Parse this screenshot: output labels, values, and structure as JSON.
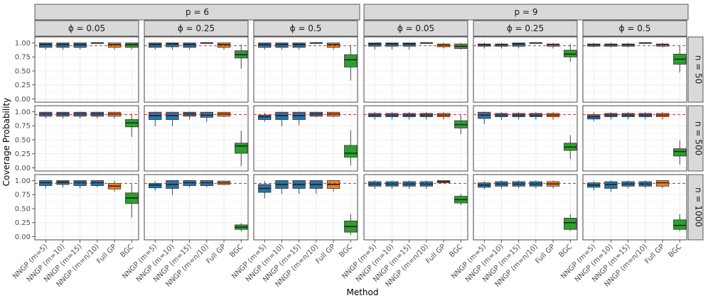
{
  "chart_data": {
    "type": "boxplot",
    "title": "",
    "xlabel": "Method",
    "ylabel": "Coverage Probability",
    "ylim": [
      0.0,
      1.05
    ],
    "yticks": [
      0.0,
      0.25,
      0.5,
      0.75,
      1.0
    ],
    "ytick_labels": [
      "0.00",
      "0.25",
      "0.50",
      "0.75",
      "1.00"
    ],
    "reference_line": 0.95,
    "colors": {
      "nngp": "#1f77b4",
      "full_gp": "#ff7f0e",
      "bgc": "#2ca02c",
      "reference": "#d62728",
      "strip_bg": "#d9d9d9",
      "grid": "#ebebeb"
    },
    "methods": [
      "NNGP (m=5)",
      "NNGP (m=10)",
      "NNGP (m=15)",
      "NNGP (m=n/10)",
      "Full GP",
      "BGC"
    ],
    "method_groups": [
      "nngp",
      "nngp",
      "nngp",
      "nngp",
      "full_gp",
      "bgc"
    ],
    "p_labels": [
      "p = 6",
      "p = 9"
    ],
    "phi_labels": [
      "ϕ = 0.05",
      "ϕ = 0.25",
      "ϕ = 0.5"
    ],
    "n_labels": [
      "n = 50",
      "n = 500",
      "n = 1000"
    ],
    "stats_format": "[whisker_low, q1, median, q3, whisker_high]",
    "panels": [
      {
        "p": "p = 6",
        "phi": "ϕ = 0.05",
        "n": "n = 50",
        "boxes": [
          [
            0.88,
            0.92,
            0.97,
            1.0,
            1.0
          ],
          [
            0.88,
            0.92,
            0.97,
            1.0,
            1.0
          ],
          [
            0.88,
            0.92,
            0.97,
            1.0,
            1.0
          ],
          [
            1.0,
            1.0,
            1.0,
            1.0,
            1.0
          ],
          [
            0.88,
            0.92,
            0.97,
            1.0,
            1.0
          ],
          [
            0.88,
            0.92,
            0.97,
            1.0,
            1.0
          ]
        ]
      },
      {
        "p": "p = 6",
        "phi": "ϕ = 0.25",
        "n": "n = 50",
        "boxes": [
          [
            0.88,
            0.92,
            0.97,
            1.0,
            1.0
          ],
          [
            0.88,
            0.93,
            0.98,
            1.0,
            1.0
          ],
          [
            0.88,
            0.92,
            0.97,
            1.0,
            1.0
          ],
          [
            1.0,
            1.0,
            1.0,
            1.0,
            1.0
          ],
          [
            0.88,
            0.92,
            0.97,
            1.0,
            1.0
          ],
          [
            0.54,
            0.73,
            0.79,
            0.86,
            0.97
          ]
        ]
      },
      {
        "p": "p = 6",
        "phi": "ϕ = 0.5",
        "n": "n = 50",
        "boxes": [
          [
            0.88,
            0.92,
            0.97,
            1.0,
            1.0
          ],
          [
            0.88,
            0.92,
            0.97,
            1.0,
            1.0
          ],
          [
            0.88,
            0.92,
            0.97,
            1.0,
            1.0
          ],
          [
            1.0,
            1.0,
            1.0,
            1.0,
            1.0
          ],
          [
            0.88,
            0.92,
            0.97,
            1.0,
            1.0
          ],
          [
            0.33,
            0.57,
            0.7,
            0.79,
            0.96
          ]
        ]
      },
      {
        "p": "p = 9",
        "phi": "ϕ = 0.05",
        "n": "n = 50",
        "boxes": [
          [
            0.88,
            0.94,
            0.98,
            1.0,
            1.0
          ],
          [
            0.88,
            0.94,
            0.98,
            1.0,
            1.0
          ],
          [
            0.88,
            0.94,
            0.98,
            1.0,
            1.0
          ],
          [
            1.0,
            1.0,
            1.0,
            1.0,
            1.0
          ],
          [
            0.9,
            0.93,
            0.96,
            0.98,
            1.0
          ],
          [
            0.88,
            0.9,
            0.94,
            0.98,
            1.0
          ]
        ]
      },
      {
        "p": "p = 9",
        "phi": "ϕ = 0.25",
        "n": "n = 50",
        "boxes": [
          [
            0.9,
            0.94,
            0.97,
            0.98,
            1.0
          ],
          [
            0.9,
            0.94,
            0.97,
            0.98,
            1.0
          ],
          [
            0.9,
            0.94,
            0.98,
            1.0,
            1.0
          ],
          [
            1.0,
            1.0,
            1.0,
            1.0,
            1.0
          ],
          [
            0.9,
            0.94,
            0.97,
            0.98,
            1.0
          ],
          [
            0.66,
            0.75,
            0.8,
            0.87,
            0.98
          ]
        ]
      },
      {
        "p": "p = 9",
        "phi": "ϕ = 0.5",
        "n": "n = 50",
        "boxes": [
          [
            0.92,
            0.94,
            0.97,
            0.98,
            1.0
          ],
          [
            0.92,
            0.94,
            0.97,
            0.98,
            1.0
          ],
          [
            0.92,
            0.94,
            0.97,
            0.98,
            1.0
          ],
          [
            1.0,
            1.0,
            1.0,
            1.0,
            1.0
          ],
          [
            0.92,
            0.94,
            0.97,
            0.98,
            1.0
          ],
          [
            0.47,
            0.62,
            0.71,
            0.8,
            0.95
          ]
        ]
      },
      {
        "p": "p = 6",
        "phi": "ϕ = 0.05",
        "n": "n = 500",
        "boxes": [
          [
            0.88,
            0.92,
            0.96,
            0.99,
            1.0
          ],
          [
            0.88,
            0.92,
            0.96,
            0.99,
            1.0
          ],
          [
            0.88,
            0.92,
            0.96,
            0.99,
            1.0
          ],
          [
            0.88,
            0.92,
            0.96,
            0.99,
            1.0
          ],
          [
            0.88,
            0.92,
            0.96,
            0.99,
            1.0
          ],
          [
            0.55,
            0.73,
            0.8,
            0.86,
            0.97
          ]
        ]
      },
      {
        "p": "p = 6",
        "phi": "ϕ = 0.25",
        "n": "n = 500",
        "boxes": [
          [
            0.74,
            0.86,
            0.93,
            0.99,
            1.0
          ],
          [
            0.74,
            0.86,
            0.93,
            0.99,
            1.0
          ],
          [
            0.86,
            0.92,
            0.96,
            0.99,
            1.0
          ],
          [
            0.82,
            0.9,
            0.94,
            0.99,
            1.0
          ],
          [
            0.9,
            0.92,
            0.96,
            0.99,
            1.0
          ],
          [
            0.03,
            0.26,
            0.39,
            0.44,
            0.66
          ]
        ]
      },
      {
        "p": "p = 6",
        "phi": "ϕ = 0.5",
        "n": "n = 500",
        "boxes": [
          [
            0.82,
            0.86,
            0.91,
            0.94,
            0.98
          ],
          [
            0.74,
            0.86,
            0.93,
            0.99,
            1.0
          ],
          [
            0.76,
            0.86,
            0.93,
            0.99,
            1.0
          ],
          [
            0.9,
            0.92,
            0.96,
            0.99,
            1.0
          ],
          [
            0.9,
            0.92,
            0.96,
            0.99,
            1.0
          ],
          [
            0.04,
            0.19,
            0.26,
            0.4,
            0.67
          ]
        ]
      },
      {
        "p": "p = 9",
        "phi": "ϕ = 0.05",
        "n": "n = 500",
        "boxes": [
          [
            0.86,
            0.91,
            0.94,
            0.97,
            0.99
          ],
          [
            0.86,
            0.91,
            0.94,
            0.97,
            0.99
          ],
          [
            0.86,
            0.91,
            0.94,
            0.97,
            0.99
          ],
          [
            0.86,
            0.91,
            0.94,
            0.97,
            0.99
          ],
          [
            0.86,
            0.91,
            0.94,
            0.97,
            0.99
          ],
          [
            0.6,
            0.71,
            0.77,
            0.84,
            0.94
          ]
        ]
      },
      {
        "p": "p = 9",
        "phi": "ϕ = 0.25",
        "n": "n = 500",
        "boxes": [
          [
            0.78,
            0.88,
            0.94,
            0.99,
            1.0
          ],
          [
            0.86,
            0.91,
            0.94,
            0.97,
            0.99
          ],
          [
            0.86,
            0.91,
            0.94,
            0.97,
            0.99
          ],
          [
            0.86,
            0.91,
            0.94,
            0.97,
            0.99
          ],
          [
            0.86,
            0.91,
            0.94,
            0.97,
            0.99
          ],
          [
            0.16,
            0.31,
            0.37,
            0.44,
            0.58
          ]
        ]
      },
      {
        "p": "p = 9",
        "phi": "ϕ = 0.5",
        "n": "n = 500",
        "boxes": [
          [
            0.83,
            0.87,
            0.91,
            0.95,
            0.99
          ],
          [
            0.86,
            0.91,
            0.94,
            0.97,
            0.99
          ],
          [
            0.86,
            0.91,
            0.94,
            0.97,
            0.99
          ],
          [
            0.86,
            0.91,
            0.94,
            0.97,
            0.99
          ],
          [
            0.86,
            0.91,
            0.94,
            0.97,
            0.99
          ],
          [
            0.06,
            0.21,
            0.29,
            0.34,
            0.49
          ]
        ]
      },
      {
        "p": "p = 6",
        "phi": "ϕ = 0.05",
        "n": "n = 1000",
        "boxes": [
          [
            0.86,
            0.91,
            0.96,
            1.0,
            1.0
          ],
          [
            0.88,
            0.93,
            0.97,
            1.0,
            1.0
          ],
          [
            0.86,
            0.91,
            0.96,
            1.0,
            1.0
          ],
          [
            0.88,
            0.91,
            0.96,
            1.0,
            1.0
          ],
          [
            0.8,
            0.85,
            0.9,
            0.95,
            1.0
          ],
          [
            0.34,
            0.59,
            0.69,
            0.78,
            0.94
          ]
        ]
      },
      {
        "p": "p = 6",
        "phi": "ϕ = 0.25",
        "n": "n = 1000",
        "boxes": [
          [
            0.82,
            0.87,
            0.92,
            0.95,
            0.99
          ],
          [
            0.74,
            0.86,
            0.93,
            1.0,
            1.0
          ],
          [
            0.88,
            0.91,
            0.96,
            1.0,
            1.0
          ],
          [
            0.88,
            0.91,
            0.96,
            1.0,
            1.0
          ],
          [
            0.92,
            0.93,
            0.96,
            0.99,
            1.0
          ],
          [
            0.09,
            0.13,
            0.17,
            0.21,
            0.24
          ]
        ]
      },
      {
        "p": "p = 6",
        "phi": "ϕ = 0.5",
        "n": "n = 1000",
        "boxes": [
          [
            0.68,
            0.79,
            0.86,
            0.93,
            0.99
          ],
          [
            0.76,
            0.86,
            0.93,
            1.0,
            1.0
          ],
          [
            0.76,
            0.86,
            0.93,
            1.0,
            1.0
          ],
          [
            0.76,
            0.86,
            0.93,
            1.0,
            1.0
          ],
          [
            0.8,
            0.86,
            0.93,
            1.0,
            1.0
          ],
          [
            0.03,
            0.08,
            0.18,
            0.28,
            0.4
          ]
        ]
      },
      {
        "p": "p = 9",
        "phi": "ϕ = 0.05",
        "n": "n = 1000",
        "boxes": [
          [
            0.85,
            0.9,
            0.94,
            0.98,
            1.0
          ],
          [
            0.85,
            0.9,
            0.94,
            0.98,
            1.0
          ],
          [
            0.85,
            0.9,
            0.94,
            0.98,
            1.0
          ],
          [
            0.85,
            0.9,
            0.94,
            0.98,
            1.0
          ],
          [
            0.94,
            0.96,
            0.98,
            1.0,
            1.0
          ],
          [
            0.56,
            0.6,
            0.66,
            0.72,
            0.76
          ]
        ]
      },
      {
        "p": "p = 9",
        "phi": "ϕ = 0.25",
        "n": "n = 1000",
        "boxes": [
          [
            0.84,
            0.88,
            0.92,
            0.96,
            0.99
          ],
          [
            0.86,
            0.9,
            0.94,
            0.98,
            1.0
          ],
          [
            0.86,
            0.9,
            0.94,
            0.98,
            1.0
          ],
          [
            0.86,
            0.9,
            0.94,
            0.98,
            1.0
          ],
          [
            0.86,
            0.9,
            0.94,
            0.98,
            1.0
          ],
          [
            0.1,
            0.13,
            0.25,
            0.33,
            0.4
          ]
        ]
      },
      {
        "p": "p = 9",
        "phi": "ϕ = 0.5",
        "n": "n = 1000",
        "boxes": [
          [
            0.82,
            0.88,
            0.92,
            0.96,
            0.99
          ],
          [
            0.8,
            0.86,
            0.93,
            0.98,
            1.0
          ],
          [
            0.86,
            0.9,
            0.94,
            0.98,
            1.0
          ],
          [
            0.86,
            0.9,
            0.94,
            0.98,
            1.0
          ],
          [
            0.86,
            0.9,
            0.96,
            1.0,
            1.0
          ],
          [
            0.1,
            0.13,
            0.2,
            0.3,
            0.4
          ]
        ]
      }
    ]
  }
}
